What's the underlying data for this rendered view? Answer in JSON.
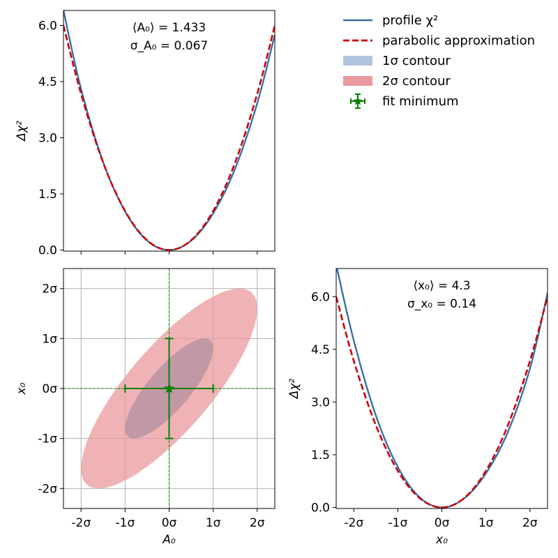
{
  "chart_data": [
    {
      "type": "line",
      "panel": "top-left",
      "x_param": "A0",
      "xlim": [
        -2.4,
        2.4
      ],
      "ylim": [
        -0.03,
        6.4
      ],
      "yticks": [
        0.0,
        1.5,
        3.0,
        4.5,
        6.0
      ],
      "ytick_labels": [
        "0.0",
        "1.5",
        "3.0",
        "4.5",
        "6.0"
      ],
      "ylabel": "Δχ²",
      "annotation_mean": "⟨A₀⟩ = 1.433",
      "annotation_sigma": "σ_A₀ = 0.067",
      "series": [
        {
          "name": "profile χ²",
          "color": "#3a6ea5",
          "style": "solid",
          "x": [
            -2.4,
            -2.0,
            -1.5,
            -1.0,
            -0.5,
            0.0,
            0.5,
            1.0,
            1.5,
            2.0,
            2.4
          ],
          "y": [
            6.4,
            4.3,
            2.35,
            1.03,
            0.25,
            0.0,
            0.25,
            0.98,
            2.18,
            3.92,
            5.75
          ]
        },
        {
          "name": "parabolic approximation",
          "color": "#cc0000",
          "style": "dashed",
          "x": [
            -2.4,
            -2.0,
            -1.5,
            -1.0,
            -0.5,
            0.0,
            0.5,
            1.0,
            1.5,
            2.0,
            2.4
          ],
          "y": [
            6.0,
            4.17,
            2.34,
            1.04,
            0.26,
            0.0,
            0.26,
            1.04,
            2.34,
            4.17,
            6.0
          ]
        }
      ]
    },
    {
      "type": "contour",
      "panel": "bottom-left",
      "xlabel": "A₀",
      "ylabel": "x₀",
      "xlim": [
        -2.4,
        2.4
      ],
      "ylim": [
        -2.4,
        2.4
      ],
      "ticks": [
        -2,
        -1,
        0,
        1,
        2
      ],
      "tick_labels": [
        "-2σ",
        "-1σ",
        "0σ",
        "1σ",
        "2σ"
      ],
      "grid": true,
      "correlation": 0.8,
      "contours": [
        {
          "name": "1σ contour",
          "level": 1,
          "fill": "#b0c4de",
          "opacity": 0.8
        },
        {
          "name": "2σ contour",
          "level": 2,
          "fill": "#e99a9e",
          "opacity": 0.75
        }
      ],
      "fit_minimum": {
        "name": "fit minimum",
        "x": 0,
        "y": 0,
        "xerr": 1,
        "yerr": 1,
        "color": "#008000"
      }
    },
    {
      "type": "line",
      "panel": "bottom-right",
      "x_param": "x0",
      "xlabel": "x₀",
      "ylabel": "Δχ²",
      "xlim": [
        -2.4,
        2.4
      ],
      "ylim": [
        -0.03,
        6.8
      ],
      "xticks": [
        -2,
        -1,
        0,
        1,
        2
      ],
      "xtick_labels": [
        "-2σ",
        "-1σ",
        "0σ",
        "1σ",
        "2σ"
      ],
      "yticks": [
        0.0,
        1.5,
        3.0,
        4.5,
        6.0
      ],
      "ytick_labels": [
        "0.0",
        "1.5",
        "3.0",
        "4.5",
        "6.0"
      ],
      "annotation_mean": "⟨x₀⟩ = 4.3",
      "annotation_sigma": "σ_x₀ = 0.14",
      "series": [
        {
          "name": "profile χ²",
          "color": "#3a6ea5",
          "style": "solid",
          "x": [
            -2.4,
            -2.0,
            -1.5,
            -1.0,
            -0.5,
            0.0,
            0.5,
            1.0,
            1.5,
            2.0,
            2.4
          ],
          "y": [
            6.9,
            4.75,
            2.62,
            1.15,
            0.28,
            0.0,
            0.25,
            0.97,
            2.15,
            3.95,
            6.1
          ]
        },
        {
          "name": "parabolic approximation",
          "color": "#cc0000",
          "style": "dashed",
          "x": [
            -2.4,
            -2.0,
            -1.5,
            -1.0,
            -0.5,
            0.0,
            0.5,
            1.0,
            1.5,
            2.0,
            2.4
          ],
          "y": [
            6.0,
            4.17,
            2.34,
            1.04,
            0.26,
            0.0,
            0.26,
            1.04,
            2.34,
            4.17,
            6.0
          ]
        }
      ]
    }
  ],
  "legend": {
    "placement": "top-right",
    "items": [
      {
        "label": "profile χ²",
        "kind": "line",
        "color": "#3a6ea5"
      },
      {
        "label": "parabolic approximation",
        "kind": "dashed",
        "color": "#cc0000"
      },
      {
        "label": "1σ contour",
        "kind": "patch",
        "color": "#b0c4de"
      },
      {
        "label": "2σ contour",
        "kind": "patch",
        "color": "#e99a9e"
      },
      {
        "label": "fit minimum",
        "kind": "marker",
        "color": "#008000"
      }
    ]
  }
}
